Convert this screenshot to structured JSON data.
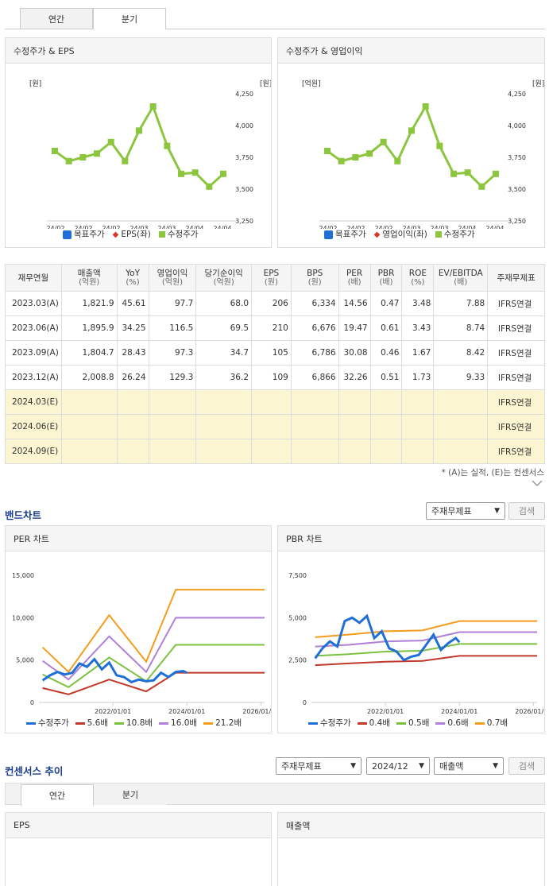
{
  "top_tabs": [
    "연간",
    "분기"
  ],
  "eps_chart": {
    "title": "수정주가 & EPS",
    "left_unit": "[원]",
    "right_unit": "[원]",
    "legend": [
      "목표주가",
      "EPS(좌)",
      "수정주가"
    ]
  },
  "op_chart": {
    "title": "수정주가 & 영업이익",
    "left_unit": "[억원]",
    "right_unit": "[원]",
    "legend": [
      "목표주가",
      "영업이익(좌)",
      "수정주가"
    ]
  },
  "right_ticks": [
    "4,250",
    "4,000",
    "3,750",
    "3,500",
    "3,250"
  ],
  "x_ticks": [
    "24/02",
    "24/02",
    "24/02",
    "24/03",
    "24/03",
    "24/04",
    "24/04"
  ],
  "table": {
    "headers": [
      [
        "재무연월",
        ""
      ],
      [
        "매출액",
        "(억원)"
      ],
      [
        "YoY",
        "(%)"
      ],
      [
        "영업이익",
        "(억원)"
      ],
      [
        "당기순이익",
        "(억원)"
      ],
      [
        "EPS",
        "(원)"
      ],
      [
        "BPS",
        "(원)"
      ],
      [
        "PER",
        "(배)"
      ],
      [
        "PBR",
        "(배)"
      ],
      [
        "ROE",
        "(%)"
      ],
      [
        "EV/EBITDA",
        "(배)"
      ],
      [
        "주재무제표",
        ""
      ]
    ],
    "rows": [
      [
        "2023.03(A)",
        "1,821.9",
        "45.61",
        "97.7",
        "68.0",
        "206",
        "6,334",
        "14.56",
        "0.47",
        "3.48",
        "7.88",
        "IFRS연결"
      ],
      [
        "2023.06(A)",
        "1,895.9",
        "34.25",
        "116.5",
        "69.5",
        "210",
        "6,676",
        "19.47",
        "0.61",
        "3.43",
        "8.74",
        "IFRS연결"
      ],
      [
        "2023.09(A)",
        "1,804.7",
        "28.43",
        "97.3",
        "34.7",
        "105",
        "6,786",
        "30.08",
        "0.46",
        "1.67",
        "8.42",
        "IFRS연결"
      ],
      [
        "2023.12(A)",
        "2,008.8",
        "26.24",
        "129.3",
        "36.2",
        "109",
        "6,866",
        "32.26",
        "0.51",
        "1.73",
        "9.33",
        "IFRS연결"
      ],
      [
        "2024.03(E)",
        "",
        "",
        "",
        "",
        "",
        "",
        "",
        "",
        "",
        "",
        "IFRS연결"
      ],
      [
        "2024.06(E)",
        "",
        "",
        "",
        "",
        "",
        "",
        "",
        "",
        "",
        "",
        "IFRS연결"
      ],
      [
        "2024.09(E)",
        "",
        "",
        "",
        "",
        "",
        "",
        "",
        "",
        "",
        "",
        "IFRS연결"
      ]
    ],
    "note": "* (A)는 실적, (E)는 컨센서스"
  },
  "band": {
    "title": "밴드차트",
    "select": "주재무제표",
    "search": "검색"
  },
  "per_chart": {
    "title": "PER 차트",
    "y_ticks": [
      "15,000",
      "10,000",
      "5,000",
      "0"
    ],
    "x_ticks": [
      "2022/01/01",
      "2024/01/01",
      "2026/01/01"
    ],
    "legend": [
      "수정주가",
      "5.6배",
      "10.8배",
      "16.0배",
      "21.2배"
    ]
  },
  "pbr_chart": {
    "title": "PBR 차트",
    "y_ticks": [
      "7,500",
      "5,000",
      "2,500",
      "0"
    ],
    "x_ticks": [
      "2022/01/01",
      "2024/01/01",
      "2026/01/01"
    ],
    "legend": [
      "수정주가",
      "0.4배",
      "0.5배",
      "0.6배",
      "0.7배"
    ]
  },
  "consensus": {
    "title": "컨센서스 추이",
    "select1": "주재무제표",
    "select2": "2024/12",
    "select3": "매출액",
    "search": "검색",
    "tabs": [
      "연간",
      "분기"
    ],
    "panel_left": "EPS",
    "panel_right": "매출액"
  },
  "colors": {
    "price_green": "#8cc63f",
    "target_blue": "#1f6fd6",
    "eps_red": "#d9352a",
    "price_blue": "#1f6fd6",
    "band1": "#c0392b",
    "band2": "#7dc142",
    "band3": "#b07fd9",
    "band4": "#f39c1e"
  },
  "chart_data": [
    {
      "type": "line",
      "name": "eps",
      "series": [
        {
          "name": "수정주가",
          "values": [
            3800,
            3720,
            3750,
            3780,
            3870,
            3720,
            3960,
            4150,
            3840,
            3620,
            3630,
            3520,
            3620
          ]
        }
      ],
      "x_ticks": [
        "24/02",
        "24/02",
        "24/02",
        "24/03",
        "24/03",
        "24/04",
        "24/04"
      ],
      "ylim": [
        3250,
        4250
      ]
    },
    {
      "type": "line",
      "name": "op",
      "series": [
        {
          "name": "수정주가",
          "values": [
            3800,
            3720,
            3750,
            3780,
            3870,
            3720,
            3960,
            4150,
            3840,
            3620,
            3630,
            3520,
            3620
          ]
        }
      ],
      "x_ticks": [
        "24/02",
        "24/02",
        "24/02",
        "24/03",
        "24/03",
        "24/04",
        "24/04"
      ],
      "ylim": [
        3250,
        4250
      ]
    },
    {
      "type": "line",
      "name": "per",
      "ylim": [
        0,
        15000
      ],
      "series": [
        {
          "name": "5.6배",
          "points": [
            [
              2020.1,
              1700
            ],
            [
              2020.8,
              950
            ],
            [
              2021.9,
              2700
            ],
            [
              2022.9,
              1300
            ],
            [
              2023.7,
              3500
            ],
            [
              2026.1,
              3500
            ]
          ]
        },
        {
          "name": "10.8배",
          "points": [
            [
              2020.1,
              3300
            ],
            [
              2020.8,
              1800
            ],
            [
              2021.9,
              5300
            ],
            [
              2022.9,
              2500
            ],
            [
              2023.7,
              6800
            ],
            [
              2026.1,
              6800
            ]
          ]
        },
        {
          "name": "16.0배",
          "points": [
            [
              2020.1,
              4900
            ],
            [
              2020.8,
              2700
            ],
            [
              2021.9,
              7800
            ],
            [
              2022.9,
              3600
            ],
            [
              2023.7,
              10000
            ],
            [
              2026.1,
              10000
            ]
          ]
        },
        {
          "name": "21.2배",
          "points": [
            [
              2020.1,
              6500
            ],
            [
              2020.8,
              3600
            ],
            [
              2021.9,
              10300
            ],
            [
              2022.9,
              4800
            ],
            [
              2023.7,
              13300
            ],
            [
              2026.1,
              13300
            ]
          ]
        },
        {
          "name": "수정주가",
          "points": [
            [
              2020.1,
              2600
            ],
            [
              2020.3,
              3200
            ],
            [
              2020.5,
              3600
            ],
            [
              2020.7,
              3300
            ],
            [
              2020.9,
              3500
            ],
            [
              2021.1,
              4600
            ],
            [
              2021.3,
              4200
            ],
            [
              2021.5,
              5100
            ],
            [
              2021.7,
              3900
            ],
            [
              2021.9,
              4700
            ],
            [
              2022.1,
              3200
            ],
            [
              2022.3,
              3000
            ],
            [
              2022.5,
              2400
            ],
            [
              2022.7,
              2700
            ],
            [
              2022.9,
              2500
            ],
            [
              2023.1,
              2600
            ],
            [
              2023.3,
              3500
            ],
            [
              2023.5,
              3000
            ],
            [
              2023.7,
              3600
            ],
            [
              2023.9,
              3700
            ],
            [
              2024.0,
              3500
            ]
          ]
        }
      ]
    },
    {
      "type": "line",
      "name": "pbr",
      "ylim": [
        0,
        7500
      ],
      "series": [
        {
          "name": "0.4배",
          "points": [
            [
              2020.1,
              2200
            ],
            [
              2021.0,
              2300
            ],
            [
              2022.0,
              2400
            ],
            [
              2023.0,
              2450
            ],
            [
              2024.0,
              2750
            ],
            [
              2026.1,
              2750
            ]
          ]
        },
        {
          "name": "0.5배",
          "points": [
            [
              2020.1,
              2750
            ],
            [
              2021.0,
              2850
            ],
            [
              2022.0,
              3000
            ],
            [
              2023.0,
              3050
            ],
            [
              2024.0,
              3450
            ],
            [
              2026.1,
              3450
            ]
          ]
        },
        {
          "name": "0.6배",
          "points": [
            [
              2020.1,
              3300
            ],
            [
              2021.0,
              3400
            ],
            [
              2022.0,
              3600
            ],
            [
              2023.0,
              3650
            ],
            [
              2024.0,
              4150
            ],
            [
              2026.1,
              4150
            ]
          ]
        },
        {
          "name": "0.7배",
          "points": [
            [
              2020.1,
              3850
            ],
            [
              2021.0,
              4000
            ],
            [
              2022.0,
              4200
            ],
            [
              2023.0,
              4250
            ],
            [
              2024.0,
              4800
            ],
            [
              2026.1,
              4800
            ]
          ]
        },
        {
          "name": "수정주가",
          "points": [
            [
              2020.1,
              2600
            ],
            [
              2020.3,
              3200
            ],
            [
              2020.5,
              3600
            ],
            [
              2020.7,
              3300
            ],
            [
              2020.9,
              4800
            ],
            [
              2021.1,
              5000
            ],
            [
              2021.3,
              4700
            ],
            [
              2021.5,
              5100
            ],
            [
              2021.7,
              3800
            ],
            [
              2021.9,
              4200
            ],
            [
              2022.1,
              3200
            ],
            [
              2022.3,
              3000
            ],
            [
              2022.5,
              2500
            ],
            [
              2022.7,
              2700
            ],
            [
              2022.9,
              2800
            ],
            [
              2023.1,
              3400
            ],
            [
              2023.3,
              4000
            ],
            [
              2023.5,
              3100
            ],
            [
              2023.7,
              3500
            ],
            [
              2023.9,
              3800
            ],
            [
              2024.0,
              3550
            ]
          ]
        }
      ]
    }
  ]
}
